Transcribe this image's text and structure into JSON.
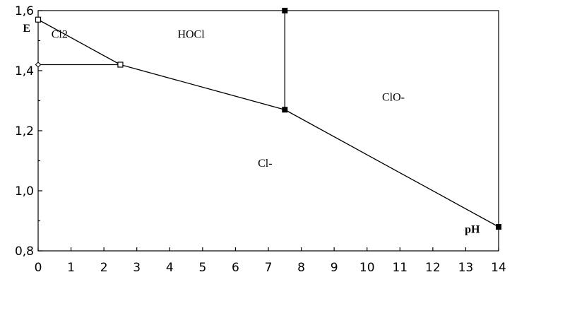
{
  "chart_data": {
    "type": "line",
    "title": "",
    "xlabel": "pH",
    "ylabel": "E",
    "xlim": [
      0,
      14
    ],
    "ylim": [
      0.8,
      1.6
    ],
    "x_ticks": [
      "0",
      "1",
      "2",
      "3",
      "4",
      "5",
      "6",
      "7",
      "8",
      "9",
      "10",
      "11",
      "12",
      "13",
      "14"
    ],
    "y_ticks": [
      {
        "value": 0.8,
        "label": "0,8"
      },
      {
        "value": 1.0,
        "label": "1,0"
      },
      {
        "value": 1.2,
        "label": "1,2"
      },
      {
        "value": 1.4,
        "label": "1,4"
      },
      {
        "value": 1.6,
        "label": "1,6"
      }
    ],
    "grid": false,
    "boundaries": [
      {
        "name": "Cl2/HOCl",
        "points": [
          [
            0,
            1.57
          ],
          [
            2.5,
            1.42
          ]
        ],
        "markers": [
          "open-square",
          "open-square"
        ]
      },
      {
        "name": "Cl2/Cl-",
        "points": [
          [
            0,
            1.42
          ],
          [
            2.5,
            1.42
          ]
        ],
        "markers": [
          "open-diamond",
          "none"
        ]
      },
      {
        "name": "HOCl/Cl-",
        "points": [
          [
            2.5,
            1.42
          ],
          [
            7.5,
            1.27
          ]
        ],
        "markers": [
          "none",
          "filled-square"
        ]
      },
      {
        "name": "HOCl/ClO-",
        "points": [
          [
            7.5,
            1.27
          ],
          [
            7.5,
            1.6
          ]
        ],
        "markers": [
          "none",
          "filled-square"
        ]
      },
      {
        "name": "ClO-/Cl-",
        "points": [
          [
            7.5,
            1.27
          ],
          [
            14,
            0.88
          ]
        ],
        "markers": [
          "none",
          "filled-square"
        ]
      }
    ],
    "regions": [
      {
        "label": "Cl2",
        "x": 0.65,
        "y": 1.51
      },
      {
        "label": "HOCl",
        "x": 4.65,
        "y": 1.51
      },
      {
        "label": "ClO-",
        "x": 10.8,
        "y": 1.3
      },
      {
        "label": "Cl-",
        "x": 6.9,
        "y": 1.08
      }
    ],
    "axis_label_positions": {
      "ylabel": {
        "x": -0.35,
        "y": 1.53
      },
      "xlabel": {
        "x": 13.2,
        "y": 0.86
      }
    },
    "colors": {
      "line": "#000000",
      "background": "#ffffff"
    }
  }
}
